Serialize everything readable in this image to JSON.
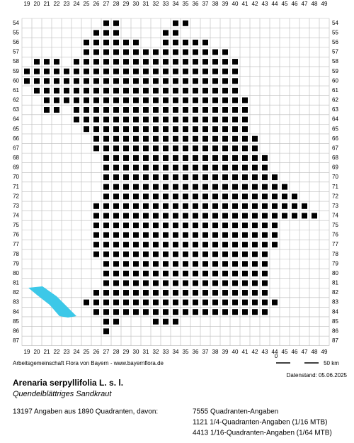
{
  "map": {
    "columns": [
      19,
      20,
      21,
      22,
      23,
      24,
      25,
      26,
      27,
      28,
      29,
      30,
      31,
      32,
      33,
      34,
      35,
      36,
      37,
      38,
      39,
      40,
      41,
      42,
      43,
      44,
      45,
      46,
      47,
      48,
      49
    ],
    "rows_labels": [
      54,
      55,
      56,
      57,
      58,
      59,
      60,
      61,
      62,
      63,
      64,
      65,
      66,
      67,
      68,
      69,
      70,
      71,
      72,
      73,
      74,
      75,
      76,
      77,
      78,
      79,
      80,
      81,
      82,
      83,
      84,
      85,
      86,
      87
    ],
    "rows": [
      {
        "row": 54,
        "spans": [
          [
            27,
            28
          ],
          [
            34,
            35
          ]
        ]
      },
      {
        "row": 55,
        "spans": [
          [
            26,
            28
          ],
          [
            33,
            34
          ]
        ]
      },
      {
        "row": 56,
        "spans": [
          [
            25,
            30
          ],
          [
            33,
            37
          ]
        ]
      },
      {
        "row": 57,
        "spans": [
          [
            25,
            39
          ]
        ]
      },
      {
        "row": 58,
        "spans": [
          [
            20,
            22
          ],
          [
            24,
            40
          ]
        ]
      },
      {
        "row": 59,
        "spans": [
          [
            19,
            40
          ]
        ]
      },
      {
        "row": 60,
        "spans": [
          [
            19,
            40
          ]
        ]
      },
      {
        "row": 61,
        "spans": [
          [
            20,
            40
          ]
        ]
      },
      {
        "row": 62,
        "spans": [
          [
            21,
            41
          ]
        ]
      },
      {
        "row": 63,
        "spans": [
          [
            21,
            22
          ],
          [
            24,
            41
          ]
        ]
      },
      {
        "row": 64,
        "spans": [
          [
            24,
            41
          ]
        ]
      },
      {
        "row": 65,
        "spans": [
          [
            25,
            41
          ]
        ]
      },
      {
        "row": 66,
        "spans": [
          [
            26,
            42
          ]
        ]
      },
      {
        "row": 67,
        "spans": [
          [
            26,
            42
          ]
        ]
      },
      {
        "row": 68,
        "spans": [
          [
            27,
            43
          ]
        ]
      },
      {
        "row": 69,
        "spans": [
          [
            27,
            43
          ]
        ]
      },
      {
        "row": 70,
        "spans": [
          [
            27,
            44
          ]
        ]
      },
      {
        "row": 71,
        "spans": [
          [
            27,
            45
          ]
        ]
      },
      {
        "row": 72,
        "spans": [
          [
            27,
            46
          ]
        ]
      },
      {
        "row": 73,
        "spans": [
          [
            26,
            47
          ]
        ]
      },
      {
        "row": 74,
        "spans": [
          [
            26,
            48
          ]
        ]
      },
      {
        "row": 75,
        "spans": [
          [
            26,
            44
          ]
        ]
      },
      {
        "row": 76,
        "spans": [
          [
            26,
            44
          ]
        ]
      },
      {
        "row": 77,
        "spans": [
          [
            26,
            44
          ]
        ]
      },
      {
        "row": 78,
        "spans": [
          [
            26,
            43
          ]
        ]
      },
      {
        "row": 79,
        "spans": [
          [
            27,
            43
          ]
        ]
      },
      {
        "row": 80,
        "spans": [
          [
            27,
            43
          ]
        ]
      },
      {
        "row": 81,
        "spans": [
          [
            27,
            43
          ]
        ]
      },
      {
        "row": 82,
        "spans": [
          [
            26,
            43
          ]
        ]
      },
      {
        "row": 83,
        "spans": [
          [
            25,
            44
          ]
        ]
      },
      {
        "row": 84,
        "spans": [
          [
            26,
            43
          ]
        ]
      },
      {
        "row": 85,
        "spans": [
          [
            27,
            28
          ],
          [
            32,
            34
          ]
        ]
      },
      {
        "row": 86,
        "spans": [
          [
            27,
            27
          ]
        ]
      }
    ]
  },
  "footer": {
    "credit": "Arbeitsgemeinschaft Flora von Bayern - www.bayernflora.de",
    "scale_start": "0",
    "scale_end": "50 km",
    "date": "Datenstand: 05.06.2025",
    "title": "Arenaria serpyllifolia L. s. l.",
    "subtitle": "Quendelblättriges Sandkraut",
    "summary": "13197 Angaben aus 1890 Quadranten, davon:",
    "stats": [
      "7555 Quadranten-Angaben",
      "1121 1/4-Quadranten-Angaben (1/16 MTB)",
      "4413 1/16-Quadranten-Angaben (1/64 MTB)"
    ]
  }
}
